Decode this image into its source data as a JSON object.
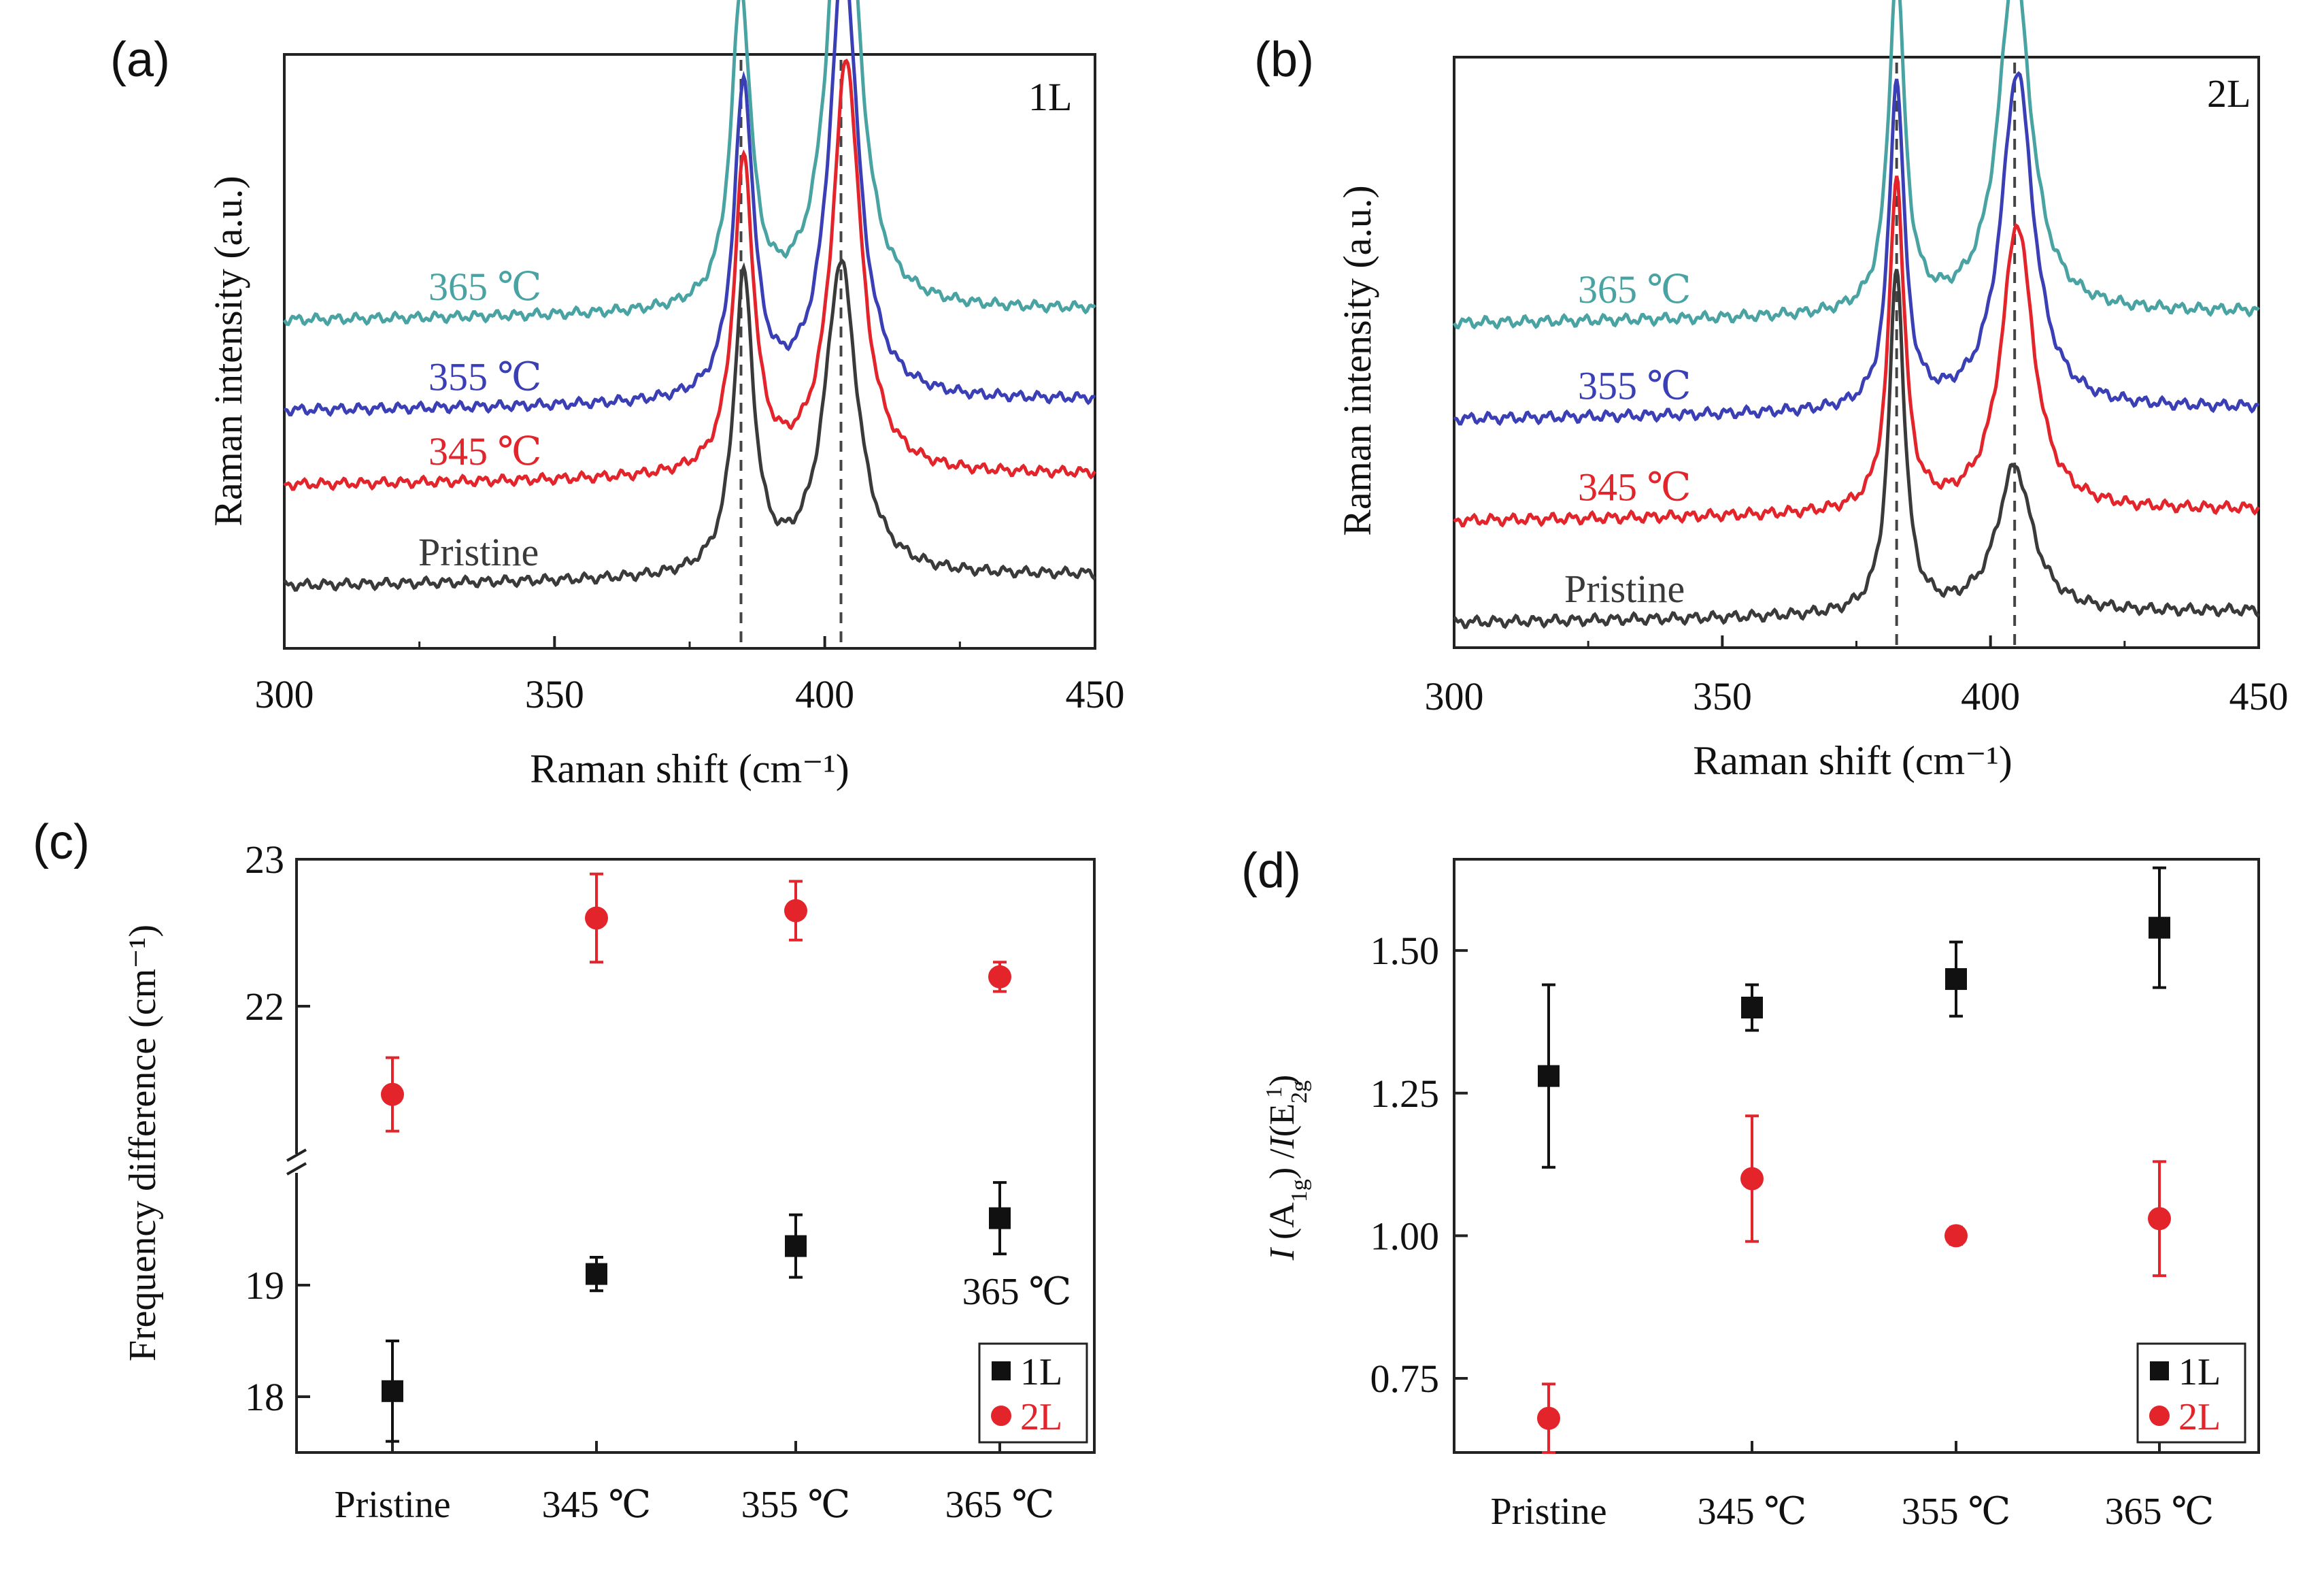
{
  "chart_data": [
    {
      "id": "a",
      "panel_label": "(a)",
      "type": "line",
      "title": "1L",
      "xlabel": "Raman shift (cm⁻¹)",
      "ylabel": "Raman intensity (a.u.)",
      "xlim": [
        300,
        450
      ],
      "xticks": [
        "300",
        "350",
        "400",
        "450"
      ],
      "peak_markers": [
        384.5,
        403.0
      ],
      "series": [
        {
          "name": "Pristine",
          "label": "Pristine",
          "color": "#3a3a3a",
          "offset": 0.05,
          "p1": 385.0,
          "a1": 0.56,
          "w1": 2.2,
          "p2": 403.0,
          "a2": 0.59,
          "w2": 3.6
        },
        {
          "name": "345 °C",
          "label": "345 ℃",
          "color": "#e3242b",
          "offset": 0.24,
          "p1": 385.0,
          "a1": 0.59,
          "w1": 2.2,
          "p2": 404.0,
          "a2": 0.78,
          "w2": 3.2
        },
        {
          "name": "355 °C",
          "label": "355 ℃",
          "color": "#3b3fb6",
          "offset": 0.38,
          "p1": 385.0,
          "a1": 0.59,
          "w1": 2.2,
          "p2": 403.5,
          "a2": 0.84,
          "w2": 3.2
        },
        {
          "name": "365 °C",
          "label": "365 ℃",
          "color": "#4aa3a3",
          "offset": 0.55,
          "p1": 384.5,
          "a1": 0.59,
          "w1": 2.2,
          "p2": 403.5,
          "a2": 0.97,
          "w2": 3.2
        }
      ]
    },
    {
      "id": "b",
      "panel_label": "(b)",
      "type": "line",
      "title": "2L",
      "xlabel": "Raman shift (cm⁻¹)",
      "ylabel": "Raman intensity (a.u.)",
      "xlim": [
        300,
        450
      ],
      "xticks": [
        "300",
        "350",
        "400",
        "450"
      ],
      "peak_markers": [
        382.5,
        404.5
      ],
      "series": [
        {
          "name": "Pristine",
          "label": "Pristine",
          "color": "#3a3a3a",
          "offset": 0.03,
          "p1": 382.5,
          "a1": 0.61,
          "w1": 1.7,
          "p2": 404.5,
          "a2": 0.26,
          "w2": 4.0
        },
        {
          "name": "345 °C",
          "label": "345 ℃",
          "color": "#e3242b",
          "offset": 0.21,
          "p1": 382.5,
          "a1": 0.59,
          "w1": 1.7,
          "p2": 405.0,
          "a2": 0.51,
          "w2": 3.6
        },
        {
          "name": "355 °C",
          "label": "355 ℃",
          "color": "#3b3fb6",
          "offset": 0.39,
          "p1": 382.5,
          "a1": 0.58,
          "w1": 1.7,
          "p2": 405.0,
          "a2": 0.6,
          "w2": 3.6
        },
        {
          "name": "365 °C",
          "label": "365 ℃",
          "color": "#4aa3a3",
          "offset": 0.56,
          "p1": 382.5,
          "a1": 0.6,
          "w1": 1.8,
          "p2": 404.5,
          "a2": 0.62,
          "w2": 3.6
        }
      ]
    },
    {
      "id": "c",
      "panel_label": "(c)",
      "type": "scatter",
      "title": "",
      "ylabel": "Frequency difference (cm⁻¹)",
      "xlabel": "",
      "categories": [
        "Pristine",
        "345 ℃",
        "355 ℃",
        "365 ℃"
      ],
      "y_axis_break": true,
      "ylim_lower": [
        17.5,
        20.0
      ],
      "ylim_upper": [
        21.0,
        23.0
      ],
      "yticks": [
        "18",
        "19",
        "22",
        "23"
      ],
      "annotation": "365 ℃",
      "legend": {
        "position": "bottom-right",
        "entries": [
          "1L",
          "2L"
        ]
      },
      "series": [
        {
          "name": "1L",
          "marker": "square",
          "color": "#111111",
          "values": [
            18.05,
            19.1,
            19.35,
            19.6
          ],
          "errors": [
            0.45,
            0.15,
            0.28,
            0.32
          ]
        },
        {
          "name": "2L",
          "marker": "circle",
          "color": "#e3242b",
          "values": [
            21.4,
            22.6,
            22.65,
            22.2
          ],
          "errors": [
            0.25,
            0.3,
            0.2,
            0.1
          ]
        }
      ]
    },
    {
      "id": "d",
      "panel_label": "(d)",
      "type": "scatter",
      "title": "",
      "ylabel": "I(A1g)/I(E12g)",
      "xlabel": "",
      "categories": [
        "Pristine",
        "345 ℃",
        "355 ℃",
        "365 ℃"
      ],
      "ylim": [
        0.62,
        1.66
      ],
      "yticks": [
        "0.75",
        "1.00",
        "1.25",
        "1.50"
      ],
      "legend": {
        "position": "bottom-right",
        "entries": [
          "1L",
          "2L"
        ]
      },
      "series": [
        {
          "name": "1L",
          "marker": "square",
          "color": "#111111",
          "values": [
            1.28,
            1.4,
            1.45,
            1.54
          ],
          "errors": [
            0.16,
            0.04,
            0.065,
            0.105
          ]
        },
        {
          "name": "2L",
          "marker": "circle",
          "color": "#e3242b",
          "values": [
            0.68,
            1.1,
            1.0,
            1.03
          ],
          "errors": [
            0.06,
            0.11,
            0.015,
            0.1
          ]
        }
      ]
    }
  ]
}
